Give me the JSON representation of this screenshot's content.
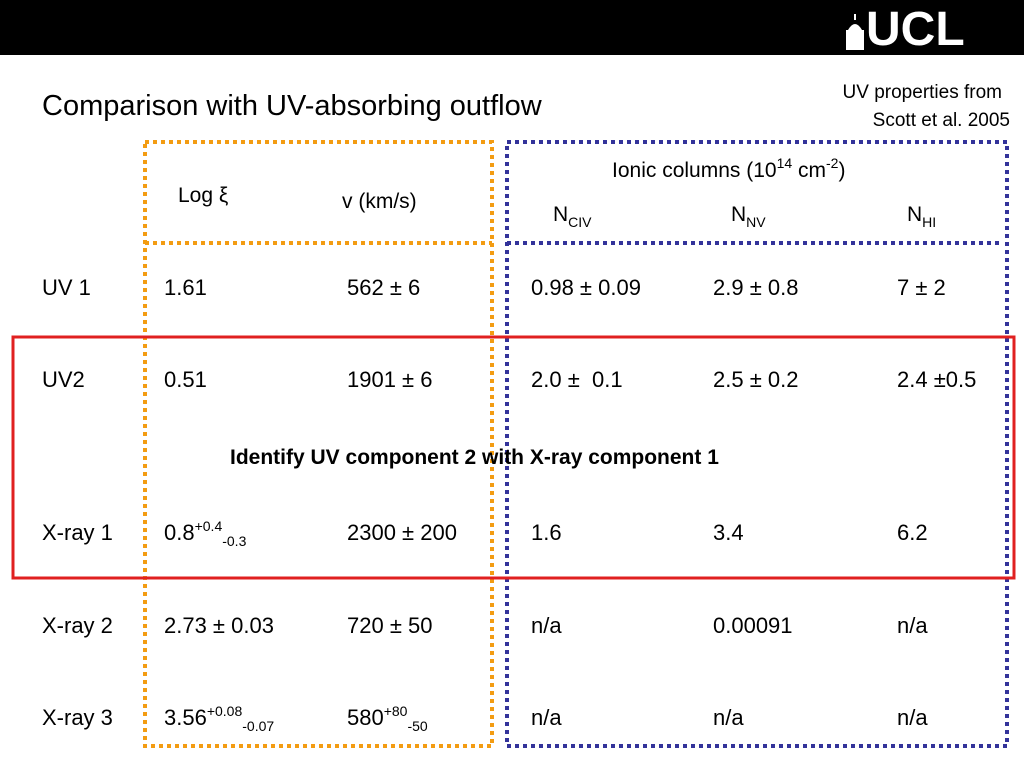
{
  "header": {
    "logo": "UCL"
  },
  "title": "Comparison with UV-absorbing outflow",
  "note": [
    "UV properties from",
    "Scott et al. 2005"
  ],
  "table": {
    "group_header": {
      "main": "Ionic columns (10",
      "sup": "14",
      "mid": " cm",
      "sup2": "-2",
      "end": ")"
    },
    "columns": [
      {
        "main": "Log ",
        "symbol": "ξ"
      },
      {
        "main": "v (km/s)"
      },
      {
        "main": "N",
        "sub": "CIV"
      },
      {
        "main": "N",
        "sub": "NV"
      },
      {
        "main": "N",
        "sub": "HI"
      }
    ],
    "rows": [
      {
        "label": "UV 1",
        "cells": [
          "1.61",
          "562 ± 6",
          "0.98 ± 0.09",
          "2.9 ± 0.8",
          "7 ± 2"
        ]
      },
      {
        "label": "UV2",
        "cells": [
          "0.51",
          "1901 ± 6",
          "2.0 ±  0.1",
          "2.5 ± 0.2",
          "2.4 ±0.5"
        ]
      },
      {
        "label": "X-ray 1",
        "cells": [
          {
            "main": "0.8",
            "sup": "+0.4",
            "sub": "-0.3"
          },
          "2300 ± 200",
          "1.6",
          "3.4",
          "6.2"
        ]
      },
      {
        "label": "X-ray 2",
        "cells": [
          "2.73 ± 0.03",
          "720 ± 50",
          "n/a",
          "0.00091",
          "n/a"
        ]
      },
      {
        "label": "X-ray 3",
        "cells": [
          {
            "main": "3.56",
            "sup": "+0.08",
            "sub": "-0.07"
          },
          {
            "main": "580",
            "sup": "+80",
            "sub": "-50"
          },
          "n/a",
          "n/a",
          "n/a"
        ]
      }
    ]
  },
  "highlight": "Identify UV component 2 with X-ray component 1"
}
